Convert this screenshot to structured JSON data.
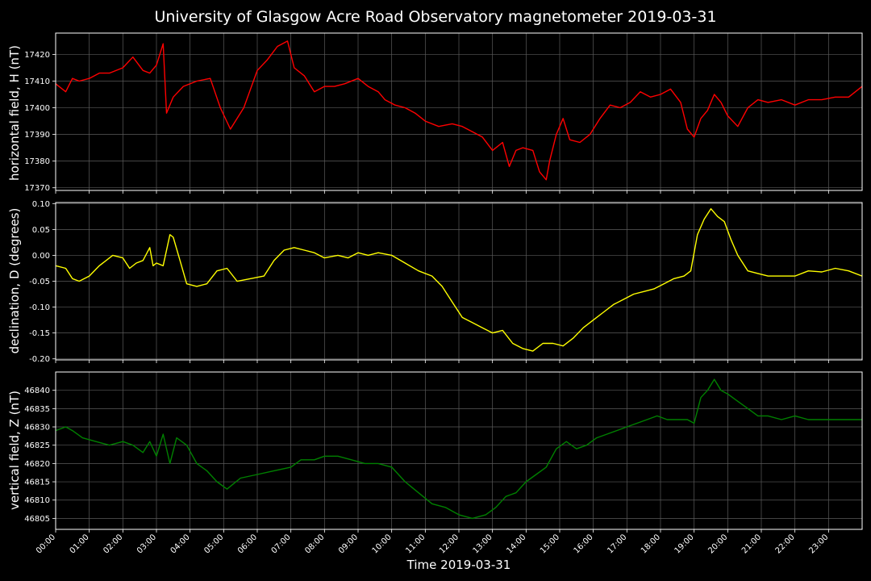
{
  "chart_data": {
    "title": "University of Glasgow Acre Road Observatory magnetometer 2019-03-31",
    "xlabel": "Time 2019-03-31",
    "x_ticks": [
      "00:00",
      "01:00",
      "02:00",
      "03:00",
      "04:00",
      "05:00",
      "06:00",
      "07:00",
      "08:00",
      "09:00",
      "10:00",
      "11:00",
      "12:00",
      "13:00",
      "14:00",
      "15:00",
      "16:00",
      "17:00",
      "18:00",
      "19:00",
      "20:00",
      "21:00",
      "22:00",
      "23:00"
    ],
    "xlim": [
      0,
      24
    ],
    "grid": true,
    "panels": [
      {
        "type": "line",
        "ylabel": "horizontal field, H (nT)",
        "color": "#ff0000",
        "ylim": [
          17369,
          17428
        ],
        "yticks": [
          "17370",
          "17380",
          "17390",
          "17400",
          "17410",
          "17420"
        ],
        "ytick_values": [
          17370,
          17380,
          17390,
          17400,
          17410,
          17420
        ],
        "x": [
          0,
          0.3,
          0.5,
          0.7,
          1.0,
          1.3,
          1.6,
          2.0,
          2.3,
          2.6,
          2.8,
          3.0,
          3.2,
          3.3,
          3.5,
          3.8,
          4.2,
          4.6,
          4.9,
          5.2,
          5.6,
          6.0,
          6.3,
          6.6,
          6.9,
          7.1,
          7.4,
          7.7,
          8.0,
          8.3,
          8.6,
          9.0,
          9.3,
          9.6,
          9.8,
          10.1,
          10.4,
          10.7,
          11.0,
          11.4,
          11.8,
          12.1,
          12.4,
          12.7,
          13.0,
          13.3,
          13.5,
          13.7,
          13.9,
          14.2,
          14.4,
          14.6,
          14.7,
          14.9,
          15.1,
          15.3,
          15.6,
          15.9,
          16.2,
          16.5,
          16.8,
          17.1,
          17.4,
          17.7,
          18.0,
          18.3,
          18.6,
          18.8,
          19.0,
          19.2,
          19.4,
          19.6,
          19.8,
          20.0,
          20.3,
          20.6,
          20.9,
          21.2,
          21.6,
          22.0,
          22.4,
          22.8,
          23.2,
          23.6,
          24.0
        ],
        "y": [
          17409,
          17406,
          17411,
          17410,
          17411,
          17413,
          17413,
          17415,
          17419,
          17414,
          17413,
          17416,
          17424,
          17398,
          17404,
          17408,
          17410,
          17411,
          17400,
          17392,
          17400,
          17414,
          17418,
          17423,
          17425,
          17415,
          17412,
          17406,
          17408,
          17408,
          17409,
          17411,
          17408,
          17406,
          17403,
          17401,
          17400,
          17398,
          17395,
          17393,
          17394,
          17393,
          17391,
          17389,
          17384,
          17387,
          17378,
          17384,
          17385,
          17384,
          17376,
          17373,
          17380,
          17390,
          17396,
          17388,
          17387,
          17390,
          17396,
          17401,
          17400,
          17402,
          17406,
          17404,
          17405,
          17407,
          17402,
          17392,
          17389,
          17396,
          17399,
          17405,
          17402,
          17397,
          17393,
          17400,
          17403,
          17402,
          17403,
          17401,
          17403,
          17403,
          17404,
          17404,
          17408
        ]
      },
      {
        "type": "line",
        "ylabel": "declination, D (degrees)",
        "color": "#ffff00",
        "ylim": [
          -0.202,
          0.102
        ],
        "yticks": [
          "0.10",
          "0.05",
          "0.00",
          "-0.05",
          "-0.10",
          "-0.15",
          "-0.20"
        ],
        "ytick_values": [
          0.1,
          0.05,
          0.0,
          -0.05,
          -0.1,
          -0.15,
          -0.2
        ],
        "x": [
          0,
          0.3,
          0.5,
          0.7,
          1.0,
          1.3,
          1.7,
          2.0,
          2.2,
          2.4,
          2.6,
          2.8,
          2.9,
          3.0,
          3.2,
          3.4,
          3.5,
          3.7,
          3.9,
          4.2,
          4.5,
          4.8,
          5.1,
          5.4,
          5.8,
          6.2,
          6.5,
          6.8,
          7.1,
          7.4,
          7.7,
          8.0,
          8.4,
          8.7,
          9.0,
          9.3,
          9.6,
          10.0,
          10.4,
          10.8,
          11.2,
          11.5,
          11.8,
          12.1,
          12.4,
          12.7,
          13.0,
          13.3,
          13.6,
          13.9,
          14.2,
          14.5,
          14.8,
          15.1,
          15.4,
          15.7,
          16.0,
          16.3,
          16.6,
          16.9,
          17.2,
          17.5,
          17.8,
          18.1,
          18.4,
          18.7,
          18.9,
          19.1,
          19.3,
          19.5,
          19.7,
          19.9,
          20.1,
          20.3,
          20.6,
          20.9,
          21.2,
          21.6,
          22.0,
          22.4,
          22.8,
          23.2,
          23.6,
          24.0
        ],
        "y": [
          -0.02,
          -0.025,
          -0.045,
          -0.05,
          -0.04,
          -0.02,
          0.0,
          -0.005,
          -0.025,
          -0.015,
          -0.01,
          0.015,
          -0.02,
          -0.015,
          -0.02,
          0.04,
          0.035,
          -0.01,
          -0.055,
          -0.06,
          -0.055,
          -0.03,
          -0.025,
          -0.05,
          -0.045,
          -0.04,
          -0.01,
          0.01,
          0.015,
          0.01,
          0.005,
          -0.005,
          0.0,
          -0.005,
          0.005,
          0.0,
          0.005,
          0.0,
          -0.015,
          -0.03,
          -0.04,
          -0.06,
          -0.09,
          -0.12,
          -0.13,
          -0.14,
          -0.15,
          -0.145,
          -0.17,
          -0.18,
          -0.185,
          -0.17,
          -0.17,
          -0.175,
          -0.16,
          -0.14,
          -0.125,
          -0.11,
          -0.095,
          -0.085,
          -0.075,
          -0.07,
          -0.065,
          -0.055,
          -0.045,
          -0.04,
          -0.03,
          0.04,
          0.07,
          0.09,
          0.075,
          0.065,
          0.03,
          0.0,
          -0.03,
          -0.035,
          -0.04,
          -0.04,
          -0.04,
          -0.03,
          -0.032,
          -0.025,
          -0.03,
          -0.04
        ]
      },
      {
        "type": "line",
        "ylabel": "vertical field, Z (nT)",
        "color": "#008000",
        "ylim": [
          46802,
          46845
        ],
        "yticks": [
          "46805",
          "46810",
          "46815",
          "46820",
          "46825",
          "46830",
          "46835",
          "46840"
        ],
        "ytick_values": [
          46805,
          46810,
          46815,
          46820,
          46825,
          46830,
          46835,
          46840
        ],
        "x": [
          0,
          0.3,
          0.5,
          0.8,
          1.2,
          1.6,
          2.0,
          2.3,
          2.6,
          2.8,
          3.0,
          3.2,
          3.4,
          3.6,
          3.9,
          4.2,
          4.5,
          4.8,
          5.1,
          5.5,
          6.0,
          6.5,
          7.0,
          7.3,
          7.7,
          8.0,
          8.4,
          8.8,
          9.2,
          9.6,
          10.0,
          10.4,
          10.8,
          11.2,
          11.6,
          12.0,
          12.4,
          12.8,
          13.1,
          13.4,
          13.7,
          14.0,
          14.3,
          14.6,
          14.9,
          15.2,
          15.5,
          15.8,
          16.1,
          16.4,
          16.7,
          17.0,
          17.3,
          17.6,
          17.9,
          18.2,
          18.5,
          18.8,
          19.0,
          19.2,
          19.4,
          19.6,
          19.8,
          20.0,
          20.3,
          20.6,
          20.9,
          21.2,
          21.6,
          22.0,
          22.4,
          22.8,
          23.2,
          23.6,
          24.0
        ],
        "y": [
          46829,
          46830,
          46829,
          46827,
          46826,
          46825,
          46826,
          46825,
          46823,
          46826,
          46822,
          46828,
          46820,
          46827,
          46825,
          46820,
          46818,
          46815,
          46813,
          46816,
          46817,
          46818,
          46819,
          46821,
          46821,
          46822,
          46822,
          46821,
          46820,
          46820,
          46819,
          46815,
          46812,
          46809,
          46808,
          46806,
          46805,
          46806,
          46808,
          46811,
          46812,
          46815,
          46817,
          46819,
          46824,
          46826,
          46824,
          46825,
          46827,
          46828,
          46829,
          46830,
          46831,
          46832,
          46833,
          46832,
          46832,
          46832,
          46831,
          46838,
          46840,
          46843,
          46840,
          46839,
          46837,
          46835,
          46833,
          46833,
          46832,
          46833,
          46832,
          46832,
          46832,
          46832,
          46832
        ]
      }
    ]
  }
}
